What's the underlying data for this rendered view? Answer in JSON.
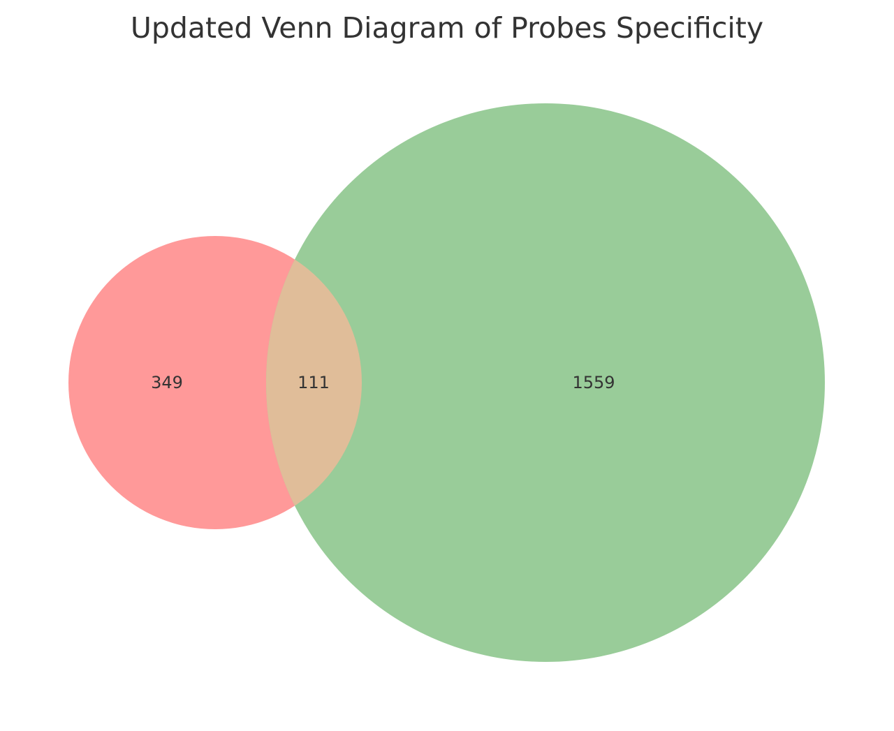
{
  "chart_data": {
    "type": "venn",
    "title": "Updated Venn Diagram of Probes Specificity",
    "sets": [
      {
        "name": "",
        "color": "#ff9999"
      },
      {
        "name": "",
        "color": "#99cc99"
      }
    ],
    "regions": {
      "only_a": 349,
      "only_b": 1559,
      "a_and_b": 111
    },
    "intersection_color": "#e0bd99",
    "regions_text": {
      "only_a": "349",
      "only_b": "1559",
      "a_and_b": "111"
    }
  }
}
